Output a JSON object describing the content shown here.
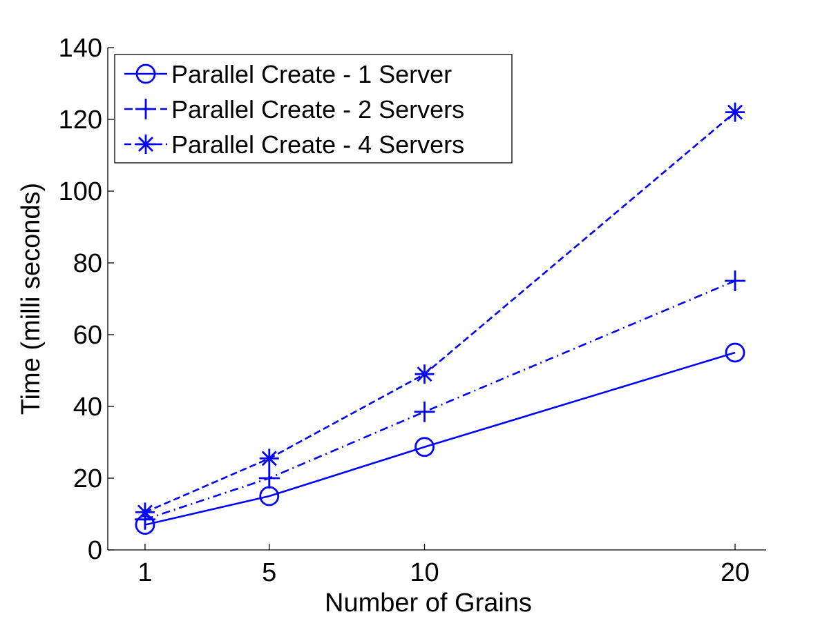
{
  "chart_data": {
    "type": "line",
    "title": "",
    "xlabel": "Number of Grains",
    "ylabel": "Time (milli seconds)",
    "x": [
      1,
      5,
      10,
      20
    ],
    "xticks": [
      1,
      5,
      10,
      20
    ],
    "xlim": [
      -0.2,
      21
    ],
    "ylim": [
      0,
      140
    ],
    "yticks": [
      0,
      20,
      40,
      60,
      80,
      100,
      120,
      140
    ],
    "grid": false,
    "legend_position": "top-left",
    "series": [
      {
        "name": "Parallel Create - 1 Server",
        "values": [
          7,
          15,
          28.7,
          55
        ],
        "color": "#0000ff",
        "line_style": "solid",
        "marker": "circle"
      },
      {
        "name": "Parallel Create - 2 Servers",
        "values": [
          8.5,
          20,
          38.5,
          75
        ],
        "color": "#0000ff",
        "line_style": "dash-dot",
        "marker": "plus"
      },
      {
        "name": "Parallel Create - 4 Servers",
        "values": [
          10.5,
          25.5,
          49,
          122
        ],
        "color": "#0000ff",
        "line_style": "dashed",
        "marker": "asterisk"
      }
    ]
  }
}
